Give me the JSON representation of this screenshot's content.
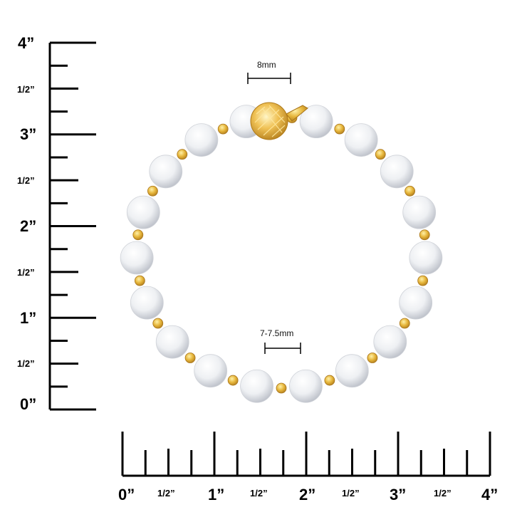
{
  "image": {
    "subject": "pearl-bracelet-with-gold-beads",
    "background_color": "#ffffff"
  },
  "vertical_ruler": {
    "labels": [
      "4”",
      "1/2”",
      "3”",
      "1/2”",
      "2”",
      "1/2”",
      "1”",
      "1/2”",
      "0”"
    ]
  },
  "horizontal_ruler": {
    "labels": [
      "0”",
      "1/2”",
      "1”",
      "1/2”",
      "2”",
      "1/2”",
      "3”",
      "1/2”",
      "4”"
    ]
  },
  "dimensions": {
    "clasp_size": "8mm",
    "pearl_size": "7-7.5mm"
  },
  "colors": {
    "ink": "#000000",
    "pearl_light": "#ffffff",
    "pearl_mid": "#e9ebef",
    "pearl_dark": "#b9bdc6",
    "gold_light": "#fff1a8",
    "gold_mid": "#e6b53a",
    "gold_dark": "#a8741a"
  },
  "pearl_count": 18,
  "gold_bead_count": 18
}
